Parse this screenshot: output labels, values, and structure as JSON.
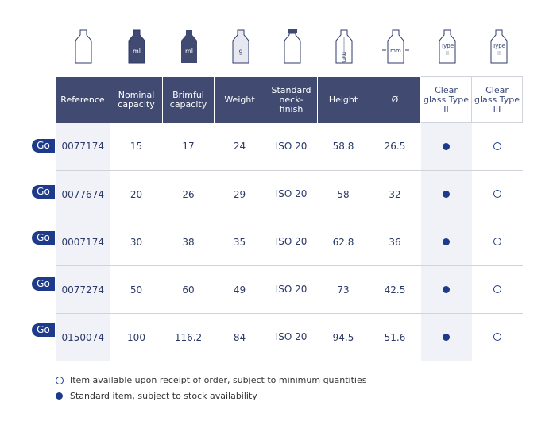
{
  "icons": [
    "bottle-outline-icon",
    "bottle-ml-nominal-icon",
    "bottle-ml-brimful-icon",
    "bottle-weight-icon",
    "bottle-neck-finish-icon",
    "bottle-height-icon",
    "bottle-diameter-icon",
    "bottle-type-ii-icon",
    "bottle-type-iii-icon"
  ],
  "icon_labels": {
    "ml": "ml",
    "g": "g",
    "mm": "mm",
    "type": "Type",
    "ii": "II",
    "iii": "III"
  },
  "headers": [
    "Reference",
    "Nominal capacity",
    "Brimful capacity",
    "Weight",
    "Standard neck-finish",
    "Height",
    "Ø",
    "Clear glass Type II",
    "Clear glass Type III"
  ],
  "go_label": "Go",
  "rows": [
    {
      "ref": "0077174",
      "nominal": "15",
      "brimful": "17",
      "weight": "24",
      "finish": "ISO 20",
      "height": "58.8",
      "diameter": "26.5",
      "type2": "standard",
      "type3": "on-order"
    },
    {
      "ref": "0077674",
      "nominal": "20",
      "brimful": "26",
      "weight": "29",
      "finish": "ISO 20",
      "height": "58",
      "diameter": "32",
      "type2": "standard",
      "type3": "on-order"
    },
    {
      "ref": "0007174",
      "nominal": "30",
      "brimful": "38",
      "weight": "35",
      "finish": "ISO 20",
      "height": "62.8",
      "diameter": "36",
      "type2": "standard",
      "type3": "on-order"
    },
    {
      "ref": "0077274",
      "nominal": "50",
      "brimful": "60",
      "weight": "49",
      "finish": "ISO 20",
      "height": "73",
      "diameter": "42.5",
      "type2": "standard",
      "type3": "on-order"
    },
    {
      "ref": "0150074",
      "nominal": "100",
      "brimful": "116.2",
      "weight": "84",
      "finish": "ISO 20",
      "height": "94.5",
      "diameter": "51.6",
      "type2": "standard",
      "type3": "on-order"
    }
  ],
  "legend": {
    "on_order": "Item available upon receipt of order, subject to minimum quantities",
    "standard": "Standard item, subject to stock availability"
  },
  "colors": {
    "header": "#414b72",
    "accent": "#1e3a8a"
  }
}
